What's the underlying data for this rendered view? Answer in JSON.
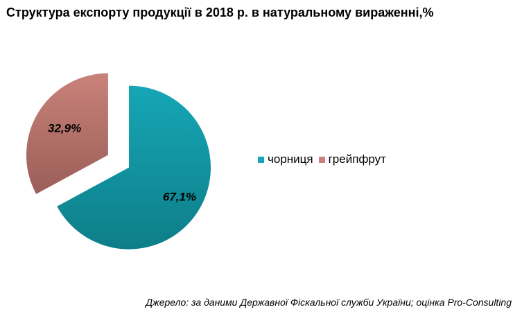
{
  "title": "Структура експорту продукції в 2018 р. в натуральному вираженні,%",
  "source": "Джерело: за даними Державної Фіскальної служби України; оцінка Pro-Consulting",
  "chart_data": {
    "type": "pie",
    "title": "Структура експорту продукції в 2018 р. в натуральному вираженні,%",
    "legend_position": "right",
    "series": [
      {
        "name": "чорниця",
        "value": 67.1,
        "label": "67,1%",
        "color_top": "#16a6b6",
        "color_bottom": "#0d7e88"
      },
      {
        "name": "грейпфрут",
        "value": 32.9,
        "label": "32,9%",
        "color_top": "#c9827a",
        "color_bottom": "#9a5e58"
      }
    ]
  }
}
